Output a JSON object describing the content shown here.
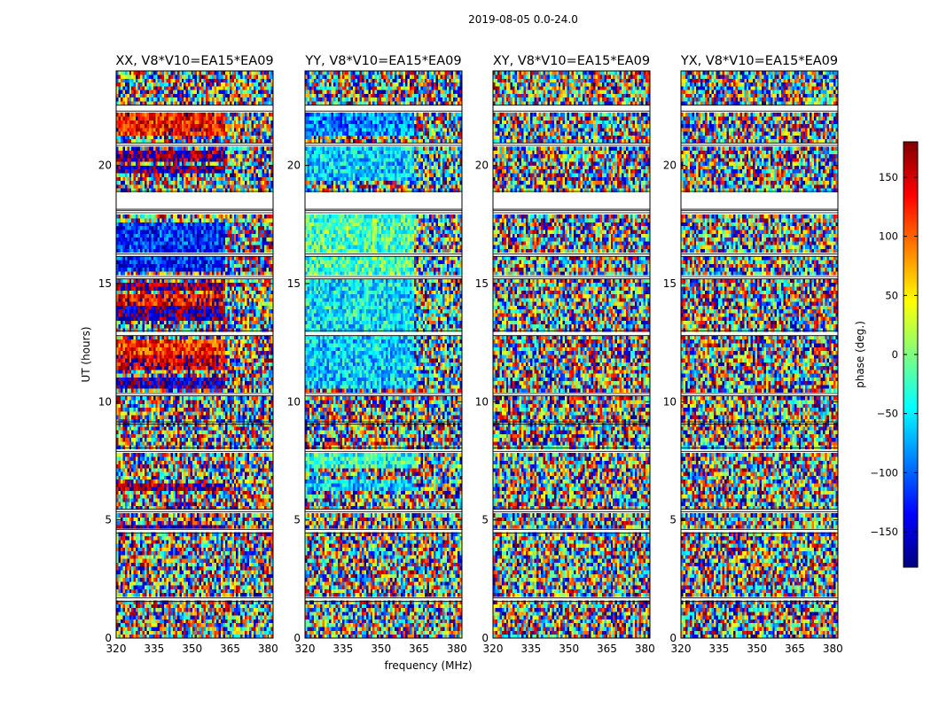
{
  "figure": {
    "suptitle": "2019-08-05 0.0-24.0",
    "xlabel": "frequency (MHz)",
    "ylabel": "UT (hours)"
  },
  "chart_data": {
    "type": "heatmap",
    "xlim": [
      320,
      382
    ],
    "ylim": [
      0,
      24
    ],
    "xticks": [
      320,
      335,
      350,
      365,
      380
    ],
    "yticks": [
      0,
      5,
      10,
      15,
      20
    ],
    "panels": [
      {
        "title": "XX, V8*V10=EA15*EA09",
        "polarization": "XX",
        "mean_phase_bands": [
          {
            "t": [
              10.6,
              11.1
            ],
            "phase": -160
          },
          {
            "t": [
              11.3,
              12.0
            ],
            "phase": 150
          },
          {
            "t": [
              12.0,
              12.7
            ],
            "phase": 120
          },
          {
            "t": [
              13.5,
              14.0
            ],
            "phase": -170
          },
          {
            "t": [
              14.0,
              14.6
            ],
            "phase": 140
          },
          {
            "t": [
              14.7,
              15.1
            ],
            "phase": 175
          },
          {
            "t": [
              15.5,
              17.6
            ],
            "phase": -120
          },
          {
            "t": [
              19.7,
              20.0
            ],
            "phase": -170
          },
          {
            "t": [
              20.1,
              20.6
            ],
            "phase": 175
          },
          {
            "t": [
              21.3,
              22.3
            ],
            "phase": 130
          },
          {
            "t": [
              6.3,
              6.6
            ],
            "phase": 170
          },
          {
            "t": [
              4.6,
              4.75
            ],
            "phase": -170
          }
        ]
      },
      {
        "title": "YY, V8*V10=EA15*EA09",
        "polarization": "YY",
        "mean_phase_bands": [
          {
            "t": [
              10.5,
              12.8
            ],
            "phase": -60
          },
          {
            "t": [
              13.0,
              15.2
            ],
            "phase": -50
          },
          {
            "t": [
              15.3,
              18.0
            ],
            "phase": -20
          },
          {
            "t": [
              19.3,
              20.8
            ],
            "phase": -60
          },
          {
            "t": [
              21.3,
              22.3
            ],
            "phase": -90
          },
          {
            "t": [
              6.3,
              6.7
            ],
            "phase": -60
          },
          {
            "t": [
              7.2,
              7.9
            ],
            "phase": -30
          }
        ]
      },
      {
        "title": "XY, V8*V10=EA15*EA09",
        "polarization": "XY",
        "mean_phase_bands": []
      },
      {
        "title": "YX, V8*V10=EA15*EA09",
        "polarization": "YX",
        "mean_phase_bands": []
      }
    ],
    "flagged_time_ranges": [
      [
        1.55,
        1.7
      ],
      [
        4.45,
        4.6
      ],
      [
        5.35,
        5.45
      ],
      [
        7.9,
        8.05
      ],
      [
        9.05,
        9.15
      ],
      [
        10.25,
        10.35
      ],
      [
        12.8,
        13.0
      ],
      [
        15.2,
        15.3
      ],
      [
        16.15,
        16.25
      ],
      [
        18.0,
        18.1
      ],
      [
        18.15,
        18.9
      ],
      [
        20.85,
        20.95
      ],
      [
        22.3,
        22.55
      ]
    ],
    "colorbar": {
      "label": "phase (deg.)",
      "range": [
        -180,
        180
      ],
      "ticks": [
        150,
        100,
        50,
        0,
        -50,
        -100,
        -150
      ],
      "tick_labels": [
        "150",
        "100",
        "50",
        "0",
        "−50",
        "−100",
        "−150"
      ],
      "colormap": "jet",
      "stops": [
        "#00007f",
        "#0000ff",
        "#007fff",
        "#00ffff",
        "#7fff7f",
        "#ffff00",
        "#ff7f00",
        "#ff0000",
        "#7f0000"
      ]
    }
  }
}
